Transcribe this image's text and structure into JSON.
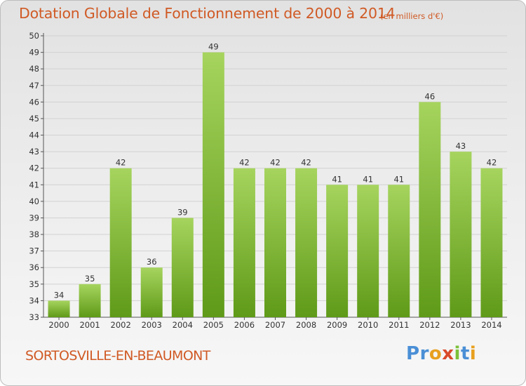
{
  "header": {
    "title": "Dotation Globale de Fonctionnement de 2000 à 2014",
    "subtitle": "(en milliers d'€)"
  },
  "footer": {
    "commune": "SORTOSVILLE-EN-BEAUMONT",
    "logo_letters": [
      {
        "char": "P",
        "color": "#4a8fd6"
      },
      {
        "char": "r",
        "color": "#4a8fd6"
      },
      {
        "char": "o",
        "color": "#e8a01e"
      },
      {
        "char": "x",
        "color": "#d94a2a"
      },
      {
        "char": "i",
        "color": "#7cc13a"
      },
      {
        "char": "t",
        "color": "#4a8fd6"
      },
      {
        "char": "i",
        "color": "#e8a01e"
      }
    ]
  },
  "colors": {
    "bar_top": "#a6d45e",
    "bar_bottom": "#5f9a18",
    "accent": "#d05a25"
  },
  "chart_data": {
    "type": "bar",
    "title": "Dotation Globale de Fonctionnement de 2000 à 2014",
    "subtitle": "(en milliers d'€)",
    "categories": [
      "2000",
      "2001",
      "2002",
      "2003",
      "2004",
      "2005",
      "2006",
      "2007",
      "2008",
      "2009",
      "2010",
      "2011",
      "2012",
      "2013",
      "2014"
    ],
    "values": [
      34,
      35,
      42,
      36,
      39,
      49,
      42,
      42,
      42,
      41,
      41,
      41,
      46,
      43,
      42
    ],
    "ylim": [
      33,
      50
    ],
    "yticks": [
      33,
      34,
      35,
      36,
      37,
      38,
      39,
      40,
      41,
      42,
      43,
      44,
      45,
      46,
      47,
      48,
      49,
      50
    ],
    "grid": true
  }
}
